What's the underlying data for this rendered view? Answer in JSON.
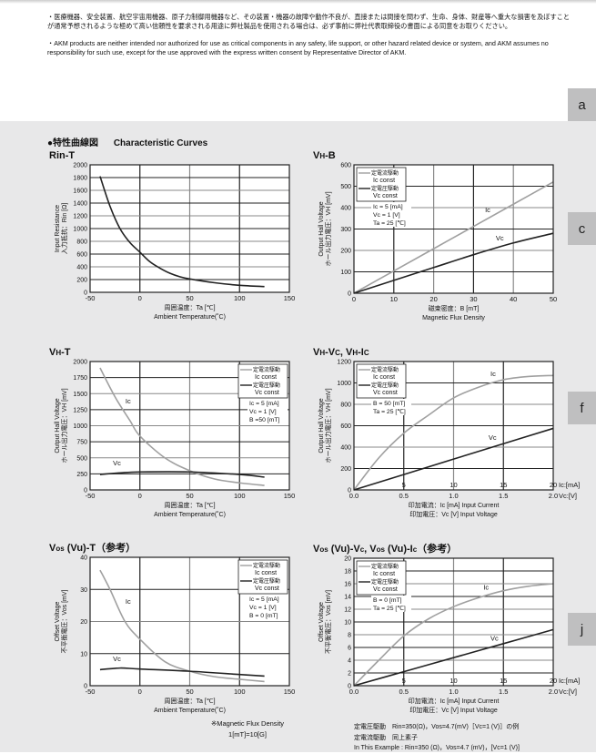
{
  "notices": {
    "jp": "・医療機器、安全装置、航空宇宙用機器、原子力制御用機器など、その装置・機器の故障や動作不良が、直接または間接を問わず、生命、身体、財産等へ重大な損害を及ぼすことが通常予想されるような極めて高い信頼性を要求される用途に弊社製品を使用される場合は、必ず事前に弊社代表取締役の書面による同意をお取りください。",
    "en": "・AKM products are neither intended nor authorized for use as critical components in any safety, life support, or other hazard related device or system, and AKM assumes no responsibility for such use, except for the use approved with the express written consent by Representative Director of AKM."
  },
  "side_tabs": [
    "a",
    "c",
    "f",
    "j"
  ],
  "section": {
    "jp": "●特性曲線図",
    "en": "Characteristic Curves"
  },
  "colors": {
    "ic_const": "#a0a0a0",
    "vc_const": "#222222",
    "background": "#e8e8e9",
    "tab": "#bfbfc0"
  },
  "chart_data": [
    {
      "type": "line",
      "title_parts": [
        {
          "t": "Rin-T"
        }
      ],
      "ylabel": [
        "Input Resistance",
        "入力抵抗：Rin [Ω]"
      ],
      "xlabel": [
        "周囲温度：Ta [℃]",
        "Ambient Temperature(˚C)"
      ],
      "xlim": [
        -50,
        150
      ],
      "ylim": [
        0,
        2000
      ],
      "xticks": [
        "-50",
        "0",
        "50",
        "100",
        "150"
      ],
      "yticks": [
        "0",
        "200",
        "400",
        "600",
        "800",
        "1000",
        "1200",
        "1400",
        "1600",
        "1800",
        "2000"
      ],
      "grid": true,
      "series": [
        {
          "color": "#222222",
          "points": [
            [
              -40,
              1820
            ],
            [
              -30,
              1350
            ],
            [
              -20,
              1000
            ],
            [
              -10,
              780
            ],
            [
              0,
              630
            ],
            [
              10,
              480
            ],
            [
              20,
              380
            ],
            [
              30,
              300
            ],
            [
              40,
              245
            ],
            [
              50,
              210
            ],
            [
              75,
              150
            ],
            [
              100,
              110
            ],
            [
              125,
              90
            ]
          ]
        }
      ]
    },
    {
      "type": "line",
      "title_parts": [
        {
          "t": "V"
        },
        {
          "t": "H",
          "small": true
        },
        {
          "t": "-B"
        }
      ],
      "ylabel": [
        "Output Hall Voltage",
        "ホール出力電圧：VH [mV]"
      ],
      "xlabel": [
        "磁束密度：B [mT]",
        "Magnetic Flux Density"
      ],
      "xlim": [
        0,
        50
      ],
      "ylim": [
        0,
        600
      ],
      "xticks": [
        "0",
        "10",
        "20",
        "30",
        "40",
        "50"
      ],
      "yticks": [
        "0",
        "100",
        "200",
        "300",
        "400",
        "500",
        "600"
      ],
      "grid": true,
      "legend": {
        "placement": "top-left",
        "entries": [
          {
            "jp": "定電流駆動",
            "en": "Ic const",
            "color": "#a0a0a0"
          },
          {
            "jp": "定電圧駆動",
            "en": "Vc const",
            "color": "#222222"
          }
        ]
      },
      "params": [
        "Ic = 5 [mA]",
        "Vc = 1 [V]",
        "Ta = 25 [℃]"
      ],
      "series": [
        {
          "name": "Ic",
          "color": "#a0a0a0",
          "points": [
            [
              0,
              0
            ],
            [
              10,
              104
            ],
            [
              20,
              208
            ],
            [
              30,
              312
            ],
            [
              40,
              416
            ],
            [
              50,
              520
            ]
          ]
        },
        {
          "name": "Vc",
          "color": "#222222",
          "points": [
            [
              0,
              0
            ],
            [
              10,
              60
            ],
            [
              20,
              120
            ],
            [
              30,
              180
            ],
            [
              40,
              235
            ],
            [
              50,
              280
            ]
          ]
        }
      ]
    },
    {
      "type": "line",
      "title_parts": [
        {
          "t": "V"
        },
        {
          "t": "H",
          "small": true
        },
        {
          "t": "-T"
        }
      ],
      "ylabel": [
        "Output Hall Voltage",
        "ホール出力電圧：VH [mV]"
      ],
      "xlabel": [
        "周囲温度：Ta [℃]",
        "Ambient Temperature(˚C)"
      ],
      "xlim": [
        -50,
        150
      ],
      "ylim": [
        0,
        2000
      ],
      "xticks": [
        "-50",
        "0",
        "50",
        "100",
        "150"
      ],
      "yticks": [
        "0",
        "250",
        "500",
        "750",
        "1000",
        "1250",
        "1500",
        "1750",
        "2000"
      ],
      "grid": true,
      "legend": {
        "placement": "top-right",
        "entries": [
          {
            "jp": "定電流駆動",
            "en": "Ic const",
            "color": "#a0a0a0"
          },
          {
            "jp": "定電圧駆動",
            "en": "Vc const",
            "color": "#222222"
          }
        ]
      },
      "params": [
        "Ic = 5 [mA]",
        "Vc = 1 [V]",
        "B =50 [mT]"
      ],
      "series": [
        {
          "name": "Ic",
          "color": "#a0a0a0",
          "points": [
            [
              -40,
              1900
            ],
            [
              -25,
              1450
            ],
            [
              -10,
              1080
            ],
            [
              0,
              840
            ],
            [
              25,
              500
            ],
            [
              50,
              300
            ],
            [
              75,
              170
            ],
            [
              100,
              110
            ],
            [
              125,
              70
            ]
          ]
        },
        {
          "name": "Vc",
          "color": "#222222",
          "points": [
            [
              -40,
              240
            ],
            [
              -20,
              265
            ],
            [
              0,
              280
            ],
            [
              50,
              280
            ],
            [
              100,
              240
            ],
            [
              125,
              200
            ]
          ]
        }
      ]
    },
    {
      "type": "line",
      "title_parts": [
        {
          "t": "V"
        },
        {
          "t": "H",
          "small": true
        },
        {
          "t": "-V"
        },
        {
          "t": "C",
          "small": true
        },
        {
          "t": ", V"
        },
        {
          "t": "H",
          "small": true
        },
        {
          "t": "-I"
        },
        {
          "t": "C",
          "small": true
        }
      ],
      "ylabel": [
        "Output Hall Voltage",
        "ホール出力電圧：VH [mV]"
      ],
      "xlabel": [
        "印加電流：Ic [mA] Input Current",
        "印加電圧：Vc [V] Input Voltage"
      ],
      "xlim": [
        0,
        2
      ],
      "ylim": [
        0,
        1200
      ],
      "xticks": [
        "0.0",
        "0.5",
        "1.0",
        "1.5",
        "2.0"
      ],
      "xticks_secondary": [
        "",
        "5",
        "10",
        "15",
        "20"
      ],
      "xunit_secondary": "Ic:[mA]",
      "xunit": "Vc:[V]",
      "yticks": [
        "0",
        "200",
        "400",
        "600",
        "800",
        "1000",
        "1200"
      ],
      "grid": true,
      "legend": {
        "placement": "top-left",
        "entries": [
          {
            "jp": "定電流駆動",
            "en": "Ic const",
            "color": "#a0a0a0"
          },
          {
            "jp": "定電圧駆動",
            "en": "Vc const",
            "color": "#222222"
          }
        ]
      },
      "params": [
        "B = 50 [mT]",
        "Ta = 25 [℃]"
      ],
      "series": [
        {
          "name": "Ic",
          "color": "#a0a0a0",
          "points": [
            [
              0,
              0
            ],
            [
              0.25,
              300
            ],
            [
              0.5,
              530
            ],
            [
              0.75,
              700
            ],
            [
              1.0,
              860
            ],
            [
              1.25,
              960
            ],
            [
              1.5,
              1030
            ],
            [
              1.75,
              1060
            ],
            [
              2.0,
              1070
            ]
          ]
        },
        {
          "name": "Vc",
          "color": "#222222",
          "points": [
            [
              0,
              0
            ],
            [
              0.5,
              144
            ],
            [
              1.0,
              288
            ],
            [
              1.5,
              432
            ],
            [
              2.0,
              575
            ]
          ]
        }
      ]
    },
    {
      "type": "line",
      "title_parts": [
        {
          "t": "V"
        },
        {
          "t": "os",
          "small": true
        },
        {
          "t": " (Vu)-T（参考）"
        }
      ],
      "ylabel": [
        "Offset Voltage",
        "不平衡電圧：Vos [mV]"
      ],
      "xlabel": [
        "周囲温度：Ta [℃]",
        "Ambient Temperature(˚C)"
      ],
      "xlim": [
        -50,
        150
      ],
      "ylim": [
        0,
        40
      ],
      "xticks": [
        "-50",
        "0",
        "50",
        "100",
        "150"
      ],
      "yticks": [
        "0",
        "10",
        "20",
        "30",
        "40"
      ],
      "grid": true,
      "legend": {
        "placement": "top-right",
        "entries": [
          {
            "jp": "定電流駆動",
            "en": "Ic const",
            "color": "#a0a0a0"
          },
          {
            "jp": "定電圧駆動",
            "en": "Vc const",
            "color": "#222222"
          }
        ]
      },
      "params": [
        "Ic = 5 [mA]",
        "Vc = 1 [V]",
        "B = 0 [mT]"
      ],
      "series": [
        {
          "name": "Ic",
          "color": "#a0a0a0",
          "points": [
            [
              -40,
              36
            ],
            [
              -30,
              30
            ],
            [
              -15,
              20
            ],
            [
              0,
              14.5
            ],
            [
              25,
              7.5
            ],
            [
              50,
              4.5
            ],
            [
              75,
              2.8
            ],
            [
              100,
              2
            ],
            [
              125,
              1.3
            ]
          ]
        },
        {
          "name": "Vc",
          "color": "#222222",
          "points": [
            [
              -40,
              5
            ],
            [
              -20,
              5.5
            ],
            [
              0,
              5.2
            ],
            [
              50,
              4.5
            ],
            [
              100,
              3.5
            ],
            [
              125,
              3
            ]
          ]
        }
      ]
    },
    {
      "type": "line",
      "title_parts": [
        {
          "t": "V"
        },
        {
          "t": "os",
          "small": true
        },
        {
          "t": " (Vu)-V"
        },
        {
          "t": "c",
          "small": true
        },
        {
          "t": ", V"
        },
        {
          "t": "os",
          "small": true
        },
        {
          "t": " (Vu)-I"
        },
        {
          "t": "c",
          "small": true
        },
        {
          "t": "（参考）"
        }
      ],
      "ylabel": [
        "Offset Voltage",
        "不平衡電圧：Vos [mV]"
      ],
      "xlabel": [
        "印加電流：Ic [mA] Input Current",
        "印加電圧：Vc [V] Input Voltage"
      ],
      "xlim": [
        0,
        2
      ],
      "ylim": [
        0,
        20
      ],
      "xticks": [
        "0.0",
        "0.5",
        "1.0",
        "1.5",
        "2.0"
      ],
      "xticks_secondary": [
        "",
        "5",
        "10",
        "15",
        "20"
      ],
      "xunit_secondary": "Ic:[mA]",
      "xunit": "Vc:[V]",
      "yticks": [
        "0",
        "2",
        "4",
        "6",
        "8",
        "10",
        "12",
        "14",
        "16",
        "18",
        "20"
      ],
      "grid": true,
      "legend": {
        "placement": "top-left",
        "entries": [
          {
            "jp": "定電流駆動",
            "en": "Ic const",
            "color": "#a0a0a0"
          },
          {
            "jp": "定電圧駆動",
            "en": "Vc const",
            "color": "#222222"
          }
        ]
      },
      "params": [
        "B = 0 [mT]",
        "Ta = 25 [℃]"
      ],
      "series": [
        {
          "name": "Ic",
          "color": "#a0a0a0",
          "points": [
            [
              0,
              0
            ],
            [
              0.25,
              4
            ],
            [
              0.5,
              7.8
            ],
            [
              0.75,
              10.5
            ],
            [
              1.0,
              12.4
            ],
            [
              1.25,
              13.8
            ],
            [
              1.5,
              14.9
            ],
            [
              1.75,
              15.6
            ],
            [
              2.0,
              16
            ]
          ]
        },
        {
          "name": "Vc",
          "color": "#222222",
          "points": [
            [
              0,
              0
            ],
            [
              0.5,
              2.2
            ],
            [
              1.0,
              4.4
            ],
            [
              1.5,
              6.6
            ],
            [
              2.0,
              8.8
            ]
          ]
        }
      ]
    }
  ],
  "footnotes": {
    "flux": [
      "※Magnetic Flux Density",
      "1[mT]=10[G]"
    ],
    "example": [
      "定電圧駆動　Rin=350(Ω)，Vos=4.7(mV)［Vc=1 (V)］の例",
      "定電流駆動　同上素子",
      "In This Example : Rin=350 (Ω)，Vos=4.7 (mV)，[Vc=1 (V)]"
    ]
  }
}
